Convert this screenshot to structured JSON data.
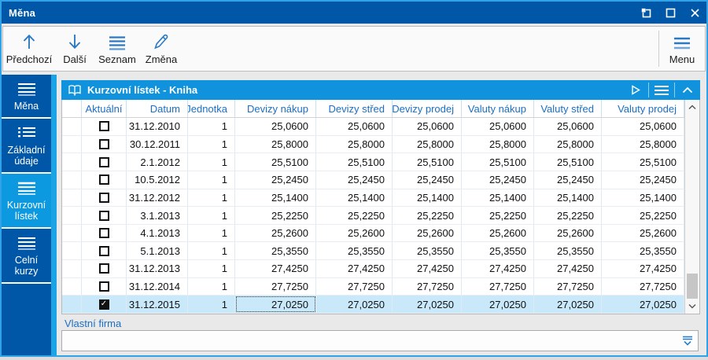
{
  "window": {
    "title": "Měna"
  },
  "toolbar": {
    "buttons": [
      {
        "label": "Předchozí",
        "icon": "arrow-up-icon"
      },
      {
        "label": "Další",
        "icon": "arrow-down-icon"
      },
      {
        "label": "Seznam",
        "icon": "list-icon"
      },
      {
        "label": "Změna",
        "icon": "pencil-icon"
      }
    ],
    "menu_label": "Menu"
  },
  "sidebar": {
    "items": [
      {
        "label": "Měna",
        "active": false
      },
      {
        "label": "Základní údaje",
        "active": false
      },
      {
        "label": "Kurzovní lístek",
        "active": true
      },
      {
        "label": "Celní kurzy",
        "active": false
      }
    ]
  },
  "panel": {
    "title": "Kurzovní lístek - Kniha"
  },
  "table": {
    "columns": [
      {
        "key": "sel",
        "label": ""
      },
      {
        "key": "aktualni",
        "label": "Aktuální"
      },
      {
        "key": "datum",
        "label": "Datum"
      },
      {
        "key": "jednotka",
        "label": "Jednotka"
      },
      {
        "key": "devizy_nakup",
        "label": "Devizy nákup"
      },
      {
        "key": "devizy_stred",
        "label": "Devizy střed"
      },
      {
        "key": "devizy_prodej",
        "label": "Devizy prodej"
      },
      {
        "key": "valuty_nakup",
        "label": "Valuty nákup"
      },
      {
        "key": "valuty_stred",
        "label": "Valuty střed"
      },
      {
        "key": "valuty_prodej",
        "label": "Valuty prodej"
      }
    ],
    "focus_column": "devizy_nakup",
    "rows": [
      {
        "aktualni": false,
        "selected": false,
        "datum": "31.12.2010",
        "jednotka": "1",
        "devizy_nakup": "25,0600",
        "devizy_stred": "25,0600",
        "devizy_prodej": "25,0600",
        "valuty_nakup": "25,0600",
        "valuty_stred": "25,0600",
        "valuty_prodej": "25,0600"
      },
      {
        "aktualni": false,
        "selected": false,
        "datum": "30.12.2011",
        "jednotka": "1",
        "devizy_nakup": "25,8000",
        "devizy_stred": "25,8000",
        "devizy_prodej": "25,8000",
        "valuty_nakup": "25,8000",
        "valuty_stred": "25,8000",
        "valuty_prodej": "25,8000"
      },
      {
        "aktualni": false,
        "selected": false,
        "datum": "2.1.2012",
        "jednotka": "1",
        "devizy_nakup": "25,5100",
        "devizy_stred": "25,5100",
        "devizy_prodej": "25,5100",
        "valuty_nakup": "25,5100",
        "valuty_stred": "25,5100",
        "valuty_prodej": "25,5100"
      },
      {
        "aktualni": false,
        "selected": false,
        "datum": "10.5.2012",
        "jednotka": "1",
        "devizy_nakup": "25,2450",
        "devizy_stred": "25,2450",
        "devizy_prodej": "25,2450",
        "valuty_nakup": "25,2450",
        "valuty_stred": "25,2450",
        "valuty_prodej": "25,2450"
      },
      {
        "aktualni": false,
        "selected": false,
        "datum": "31.12.2012",
        "jednotka": "1",
        "devizy_nakup": "25,1400",
        "devizy_stred": "25,1400",
        "devizy_prodej": "25,1400",
        "valuty_nakup": "25,1400",
        "valuty_stred": "25,1400",
        "valuty_prodej": "25,1400"
      },
      {
        "aktualni": false,
        "selected": false,
        "datum": "3.1.2013",
        "jednotka": "1",
        "devizy_nakup": "25,2250",
        "devizy_stred": "25,2250",
        "devizy_prodej": "25,2250",
        "valuty_nakup": "25,2250",
        "valuty_stred": "25,2250",
        "valuty_prodej": "25,2250"
      },
      {
        "aktualni": false,
        "selected": false,
        "datum": "4.1.2013",
        "jednotka": "1",
        "devizy_nakup": "25,2600",
        "devizy_stred": "25,2600",
        "devizy_prodej": "25,2600",
        "valuty_nakup": "25,2600",
        "valuty_stred": "25,2600",
        "valuty_prodej": "25,2600"
      },
      {
        "aktualni": false,
        "selected": false,
        "datum": "5.1.2013",
        "jednotka": "1",
        "devizy_nakup": "25,3550",
        "devizy_stred": "25,3550",
        "devizy_prodej": "25,3550",
        "valuty_nakup": "25,3550",
        "valuty_stred": "25,3550",
        "valuty_prodej": "25,3550"
      },
      {
        "aktualni": false,
        "selected": false,
        "datum": "31.12.2013",
        "jednotka": "1",
        "devizy_nakup": "27,4250",
        "devizy_stred": "27,4250",
        "devizy_prodej": "27,4250",
        "valuty_nakup": "27,4250",
        "valuty_stred": "27,4250",
        "valuty_prodej": "27,4250"
      },
      {
        "aktualni": false,
        "selected": false,
        "datum": "31.12.2014",
        "jednotka": "1",
        "devizy_nakup": "27,7250",
        "devizy_stred": "27,7250",
        "devizy_prodej": "27,7250",
        "valuty_nakup": "27,7250",
        "valuty_stred": "27,7250",
        "valuty_prodej": "27,7250"
      },
      {
        "aktualni": true,
        "selected": true,
        "datum": "31.12.2015",
        "jednotka": "1",
        "devizy_nakup": "27,0250",
        "devizy_stred": "27,0250",
        "devizy_prodej": "27,0250",
        "valuty_nakup": "27,0250",
        "valuty_stred": "27,0250",
        "valuty_prodej": "27,0250"
      }
    ]
  },
  "footer": {
    "label": "Vlastní firma",
    "value": "",
    "placeholder": ""
  }
}
